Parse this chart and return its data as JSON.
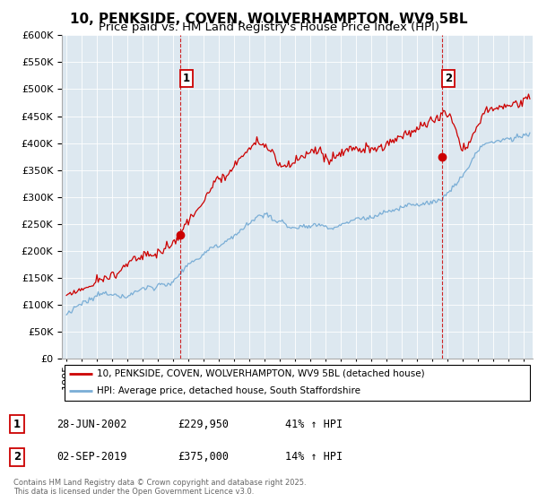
{
  "title": "10, PENKSIDE, COVEN, WOLVERHAMPTON, WV9 5BL",
  "subtitle": "Price paid vs. HM Land Registry's House Price Index (HPI)",
  "chart_bg": "#dde8f0",
  "fig_bg": "#ffffff",
  "grid_color": "#ffffff",
  "ylim": [
    0,
    600000
  ],
  "yticks": [
    0,
    50000,
    100000,
    150000,
    200000,
    250000,
    300000,
    350000,
    400000,
    450000,
    500000,
    550000,
    600000
  ],
  "xlim_start": 1994.7,
  "xlim_end": 2025.6,
  "sale1_date": 2002.49,
  "sale1_price": 229950,
  "sale1_label": "1",
  "sale2_date": 2019.67,
  "sale2_price": 375000,
  "sale2_label": "2",
  "red_line_color": "#cc0000",
  "blue_line_color": "#7aaed6",
  "vline_color": "#cc0000",
  "legend_line1": "10, PENKSIDE, COVEN, WOLVERHAMPTON, WV9 5BL (detached house)",
  "legend_line2": "HPI: Average price, detached house, South Staffordshire",
  "table_row1": [
    "1",
    "28-JUN-2002",
    "£229,950",
    "41% ↑ HPI"
  ],
  "table_row2": [
    "2",
    "02-SEP-2019",
    "£375,000",
    "14% ↑ HPI"
  ],
  "footer": "Contains HM Land Registry data © Crown copyright and database right 2025.\nThis data is licensed under the Open Government Licence v3.0.",
  "title_fontsize": 11,
  "subtitle_fontsize": 9.5,
  "tick_fontsize": 8
}
